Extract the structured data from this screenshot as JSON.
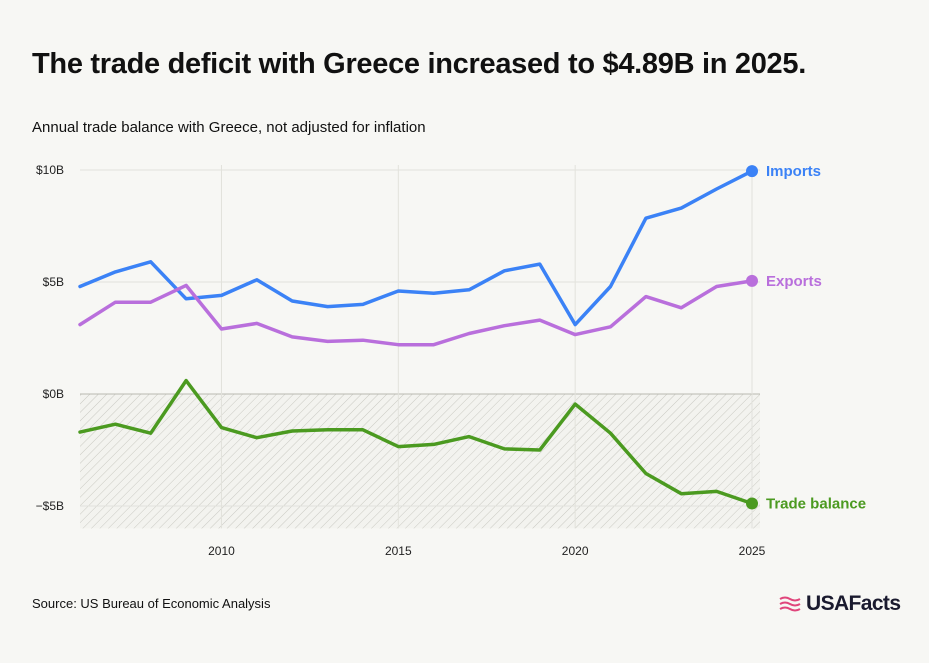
{
  "title": "The trade deficit with Greece increased to $4.89B in 2025.",
  "subtitle": "Annual trade balance with Greece, not adjusted for inflation",
  "source": "Source: US Bureau of Economic Analysis",
  "logo_text": "USAFacts",
  "chart_data": {
    "type": "line",
    "x": [
      2006,
      2007,
      2008,
      2009,
      2010,
      2011,
      2012,
      2013,
      2014,
      2015,
      2016,
      2017,
      2018,
      2019,
      2020,
      2021,
      2022,
      2023,
      2024,
      2025
    ],
    "ylim": [
      -6,
      10
    ],
    "y_ticks": [
      {
        "value": 10,
        "label": "$10B"
      },
      {
        "value": 5,
        "label": "$5B"
      },
      {
        "value": 0,
        "label": "$0B"
      },
      {
        "value": -5,
        "label": "−$5B"
      }
    ],
    "x_ticks": [
      {
        "value": 2010,
        "label": "2010"
      },
      {
        "value": 2015,
        "label": "2015"
      },
      {
        "value": 2020,
        "label": "2020"
      },
      {
        "value": 2025,
        "label": "2025"
      }
    ],
    "grid": true,
    "series": [
      {
        "name": "Imports",
        "color": "#3b82f6",
        "values": [
          4.8,
          5.45,
          5.9,
          4.25,
          4.4,
          5.1,
          4.15,
          3.9,
          4.0,
          4.6,
          4.5,
          4.65,
          5.5,
          5.8,
          3.1,
          4.8,
          7.85,
          8.3,
          9.15,
          9.95
        ]
      },
      {
        "name": "Exports",
        "color": "#b96fdc",
        "values": [
          3.1,
          4.1,
          4.1,
          4.85,
          2.9,
          3.15,
          2.55,
          2.35,
          2.4,
          2.2,
          2.2,
          2.7,
          3.05,
          3.3,
          2.65,
          3.0,
          4.35,
          3.85,
          4.8,
          5.05
        ]
      },
      {
        "name": "Trade balance",
        "color": "#4b9a20",
        "values": [
          -1.7,
          -1.35,
          -1.75,
          0.6,
          -1.5,
          -1.95,
          -1.65,
          -1.6,
          -1.6,
          -2.35,
          -2.25,
          -1.9,
          -2.45,
          -2.5,
          -0.45,
          -1.75,
          -3.55,
          -4.45,
          -4.35,
          -4.89
        ]
      }
    ]
  }
}
